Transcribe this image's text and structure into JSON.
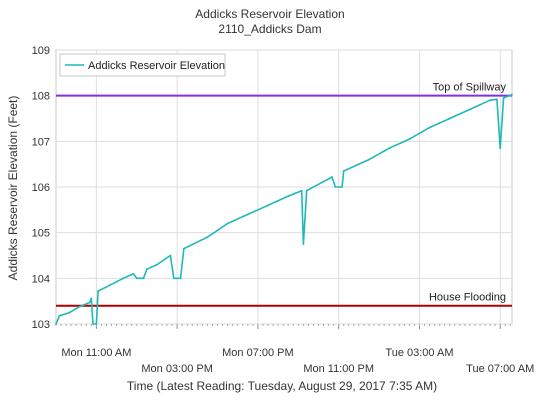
{
  "chart_data": {
    "type": "line",
    "title": "Addicks Reservoir Elevation",
    "subtitle": "2110_Addicks Dam",
    "xlabel": "Time (Latest Reading: Tuesday, August 29, 2017 7:35 AM)",
    "ylabel": "Addicks Reservoir Elevation (Feet)",
    "ylim": [
      103,
      109
    ],
    "xlim": [
      "2017-08-28T09:00",
      "2017-08-29T07:35"
    ],
    "grid": true,
    "legend_position": "top-left",
    "y_ticks": [
      103,
      104,
      105,
      106,
      107,
      108,
      109
    ],
    "x_ticks": [
      {
        "t": "2017-08-28T11:00",
        "label": "Mon 11:00 AM",
        "row": 1
      },
      {
        "t": "2017-08-28T15:00",
        "label": "Mon 03:00 PM",
        "row": 2
      },
      {
        "t": "2017-08-28T19:00",
        "label": "Mon 07:00 PM",
        "row": 1
      },
      {
        "t": "2017-08-28T23:00",
        "label": "Mon 11:00 PM",
        "row": 2
      },
      {
        "t": "2017-08-29T03:00",
        "label": "Tue 03:00 AM",
        "row": 1
      },
      {
        "t": "2017-08-29T07:00",
        "label": "Tue 07:00 AM",
        "row": 2
      }
    ],
    "reference_lines": [
      {
        "label": "Top of Spillway",
        "value": 108.0,
        "color": "#8a2be2"
      },
      {
        "label": "House Flooding",
        "value": 103.4,
        "color": "#b00000"
      }
    ],
    "series": [
      {
        "name": "Addicks Reservoir Elevation",
        "color": "#1fb8b8",
        "points": [
          [
            "2017-08-28T09:00",
            103.0
          ],
          [
            "2017-08-28T09:10",
            103.18
          ],
          [
            "2017-08-28T09:40",
            103.25
          ],
          [
            "2017-08-28T10:10",
            103.38
          ],
          [
            "2017-08-28T10:40",
            103.47
          ],
          [
            "2017-08-28T10:45",
            103.56
          ],
          [
            "2017-08-28T10:50",
            103.0
          ],
          [
            "2017-08-28T11:00",
            103.0
          ],
          [
            "2017-08-28T11:05",
            103.72
          ],
          [
            "2017-08-28T11:40",
            103.85
          ],
          [
            "2017-08-28T12:20",
            104.0
          ],
          [
            "2017-08-28T12:50",
            104.1
          ],
          [
            "2017-08-28T13:00",
            104.0
          ],
          [
            "2017-08-28T13:20",
            104.0
          ],
          [
            "2017-08-28T13:30",
            104.2
          ],
          [
            "2017-08-28T14:00",
            104.3
          ],
          [
            "2017-08-28T14:40",
            104.5
          ],
          [
            "2017-08-28T14:50",
            104.0
          ],
          [
            "2017-08-28T15:10",
            104.0
          ],
          [
            "2017-08-28T15:20",
            104.65
          ],
          [
            "2017-08-28T16:30",
            104.9
          ],
          [
            "2017-08-28T17:30",
            105.2
          ],
          [
            "2017-08-28T18:30",
            105.4
          ],
          [
            "2017-08-28T19:30",
            105.6
          ],
          [
            "2017-08-28T20:30",
            105.8
          ],
          [
            "2017-08-28T21:10",
            105.92
          ],
          [
            "2017-08-28T21:15",
            104.75
          ],
          [
            "2017-08-28T21:25",
            105.92
          ],
          [
            "2017-08-28T22:10",
            106.1
          ],
          [
            "2017-08-28T22:40",
            106.22
          ],
          [
            "2017-08-28T22:50",
            106.0
          ],
          [
            "2017-08-28T23:10",
            106.0
          ],
          [
            "2017-08-28T23:15",
            106.35
          ],
          [
            "2017-08-29T00:30",
            106.6
          ],
          [
            "2017-08-29T01:30",
            106.85
          ],
          [
            "2017-08-29T02:30",
            107.05
          ],
          [
            "2017-08-29T03:30",
            107.3
          ],
          [
            "2017-08-29T04:30",
            107.5
          ],
          [
            "2017-08-29T05:30",
            107.7
          ],
          [
            "2017-08-29T06:30",
            107.9
          ],
          [
            "2017-08-29T06:50",
            107.92
          ],
          [
            "2017-08-29T07:00",
            106.85
          ],
          [
            "2017-08-29T07:10",
            107.95
          ],
          [
            "2017-08-29T07:35",
            108.02
          ]
        ]
      }
    ]
  }
}
